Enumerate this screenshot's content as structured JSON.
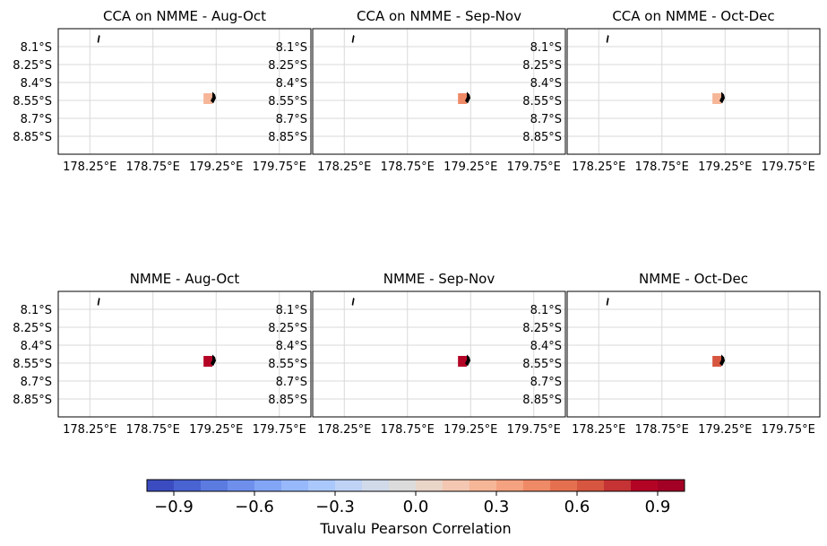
{
  "chart_data": {
    "type": "heatmap",
    "panels": [
      {
        "title": "CCA on NMME - Aug-Oct",
        "value": 0.2
      },
      {
        "title": "CCA on NMME - Sep-Nov",
        "value": 0.4
      },
      {
        "title": "CCA on NMME - Oct-Dec",
        "value": 0.2
      },
      {
        "title": "NMME - Aug-Oct",
        "value": 0.8
      },
      {
        "title": "NMME - Sep-Nov",
        "value": 0.8
      },
      {
        "title": "NMME - Oct-Dec",
        "value": 0.6
      }
    ],
    "lon_range": [
      178.0,
      180.0
    ],
    "lat_range": [
      -9.0,
      -7.95
    ],
    "lon_ticks": [
      178.25,
      178.75,
      179.25,
      179.75
    ],
    "lon_tick_labels": [
      "178.25°E",
      "178.75°E",
      "179.25°E",
      "179.75°E"
    ],
    "lat_ticks": [
      -8.1,
      -8.25,
      -8.4,
      -8.55,
      -8.7,
      -8.85
    ],
    "lat_tick_labels": [
      "8.1°S",
      "8.25°S",
      "8.4°S",
      "8.55°S",
      "8.7°S",
      "8.85°S"
    ],
    "cell": {
      "lon": [
        179.15,
        179.22
      ],
      "lat": [
        -8.58,
        -8.49
      ]
    },
    "grid": true,
    "colorbar": {
      "label": "Tuvalu Pearson Correlation",
      "range": [
        -1.0,
        1.0
      ],
      "ticks": [
        -0.9,
        -0.6,
        -0.3,
        0.0,
        0.3,
        0.6,
        0.9
      ],
      "tick_labels": [
        "−0.9",
        "−0.6",
        "−0.3",
        "0.0",
        "0.3",
        "0.6",
        "0.9"
      ],
      "colors": [
        "#3b4cc0",
        "#4a63d3",
        "#5b7be0",
        "#6e90ec",
        "#82a5f5",
        "#97b8fb",
        "#abc8fd",
        "#bfd3f6",
        "#d1dae9",
        "#dddcdc",
        "#ead5c9",
        "#f3c7b1",
        "#f6b698",
        "#f5a280",
        "#ef8a67",
        "#e5704f",
        "#d75640",
        "#c53334",
        "#b40426",
        "#a30026"
      ]
    }
  }
}
